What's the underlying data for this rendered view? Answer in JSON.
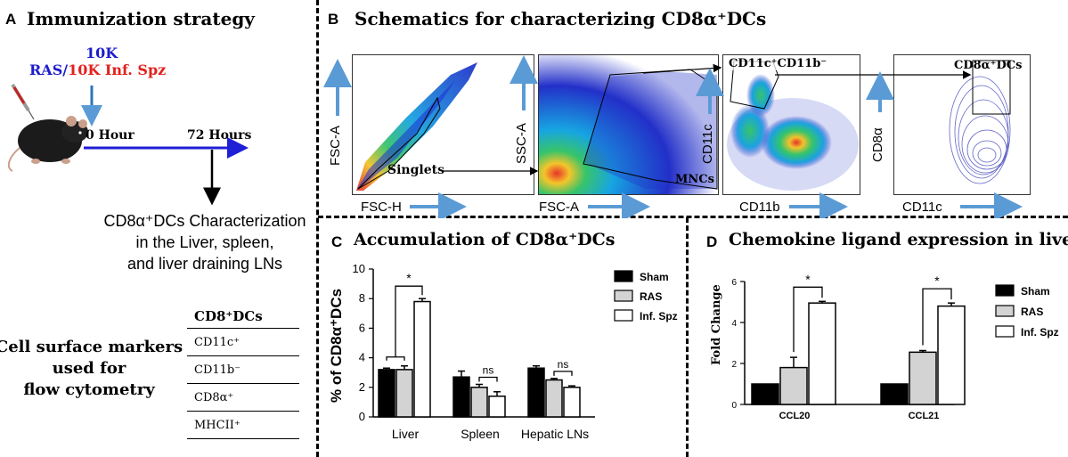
{
  "panel_a": {
    "letter": "A",
    "title": "Immunization strategy",
    "dose": "10K",
    "ras": "RAS/",
    "inf_spz": "10K Inf. Spz",
    "hour0": "0 Hour",
    "hour72": "72 Hours",
    "characterization": [
      "CD8α⁺DCs Characterization",
      "in the Liver, spleen,",
      "and liver draining LNs"
    ],
    "markers_heading": [
      "Cell surface markers",
      "used for",
      "flow cytometry"
    ],
    "table_header": "CD8⁺DCs",
    "table_rows": [
      "CD11c⁺",
      "CD11b⁻",
      "CD8α⁺",
      "MHCII⁺"
    ]
  },
  "panel_b": {
    "letter": "B",
    "title": "Schematics for characterizing CD8α⁺DCs",
    "plot1": {
      "ylabel": "FSC-A",
      "xlabel": "FSC-H",
      "gate": "Singlets"
    },
    "plot2": {
      "ylabel": "SSC-A",
      "xlabel": "FSC-A",
      "gate": "MNCs"
    },
    "plot3": {
      "ylabel": "CD11c",
      "xlabel": "CD11b",
      "gate": "CD11c⁺CD11b⁻"
    },
    "plot4": {
      "ylabel": "CD8α",
      "xlabel": "CD11c",
      "gate": "CD8α⁺DCs"
    }
  },
  "colors": {
    "arrow_blue": "#5b9bd5",
    "timeline_blue": "#1f1fd6",
    "ras_blue": "#1c1ccd",
    "inf_red": "#e2211c",
    "sham": "#000000",
    "ras_bar": "#d3d3d3",
    "inf_bar": "#ffffff"
  },
  "chart_data": [
    {
      "panel": "C",
      "type": "bar",
      "title": "Accumulation of CD8α⁺DCs",
      "ylabel": "% of CD8α⁺DCs",
      "xlabel": "",
      "ylim": [
        0,
        10
      ],
      "yticks": [
        "0",
        "2",
        "4",
        "6",
        "8",
        "10"
      ],
      "categories": [
        "Liver",
        "Spleen",
        "Hepatic LNs"
      ],
      "legend": [
        "Sham",
        "RAS",
        "Inf. Spz"
      ],
      "series": [
        {
          "name": "Sham",
          "values": [
            3.2,
            2.7,
            3.3
          ],
          "errors": [
            0.1,
            0.4,
            0.15
          ]
        },
        {
          "name": "RAS",
          "values": [
            3.2,
            2.0,
            2.5
          ],
          "errors": [
            0.25,
            0.2,
            0.1
          ]
        },
        {
          "name": "Inf. Spz",
          "values": [
            7.8,
            1.4,
            2.0
          ],
          "errors": [
            0.2,
            0.3,
            0.1
          ]
        }
      ],
      "annotations": [
        "*",
        "ns",
        "ns"
      ]
    },
    {
      "panel": "D",
      "type": "bar",
      "title": "Chemokine ligand expression in liver",
      "ylabel": "Fold Change",
      "xlabel": "",
      "ylim": [
        0,
        6
      ],
      "yticks": [
        "0",
        "2",
        "4",
        "6"
      ],
      "categories": [
        "CCL20",
        "CCL21"
      ],
      "legend": [
        "Sham",
        "RAS",
        "Inf. Spz"
      ],
      "series": [
        {
          "name": "Sham",
          "values": [
            1.0,
            1.0
          ],
          "errors": [
            0,
            0
          ]
        },
        {
          "name": "RAS",
          "values": [
            1.8,
            2.55
          ],
          "errors": [
            0.5,
            0.08
          ]
        },
        {
          "name": "Inf. Spz",
          "values": [
            4.95,
            4.8
          ],
          "errors": [
            0.08,
            0.15
          ]
        }
      ],
      "annotations": [
        "*",
        "*"
      ]
    }
  ]
}
